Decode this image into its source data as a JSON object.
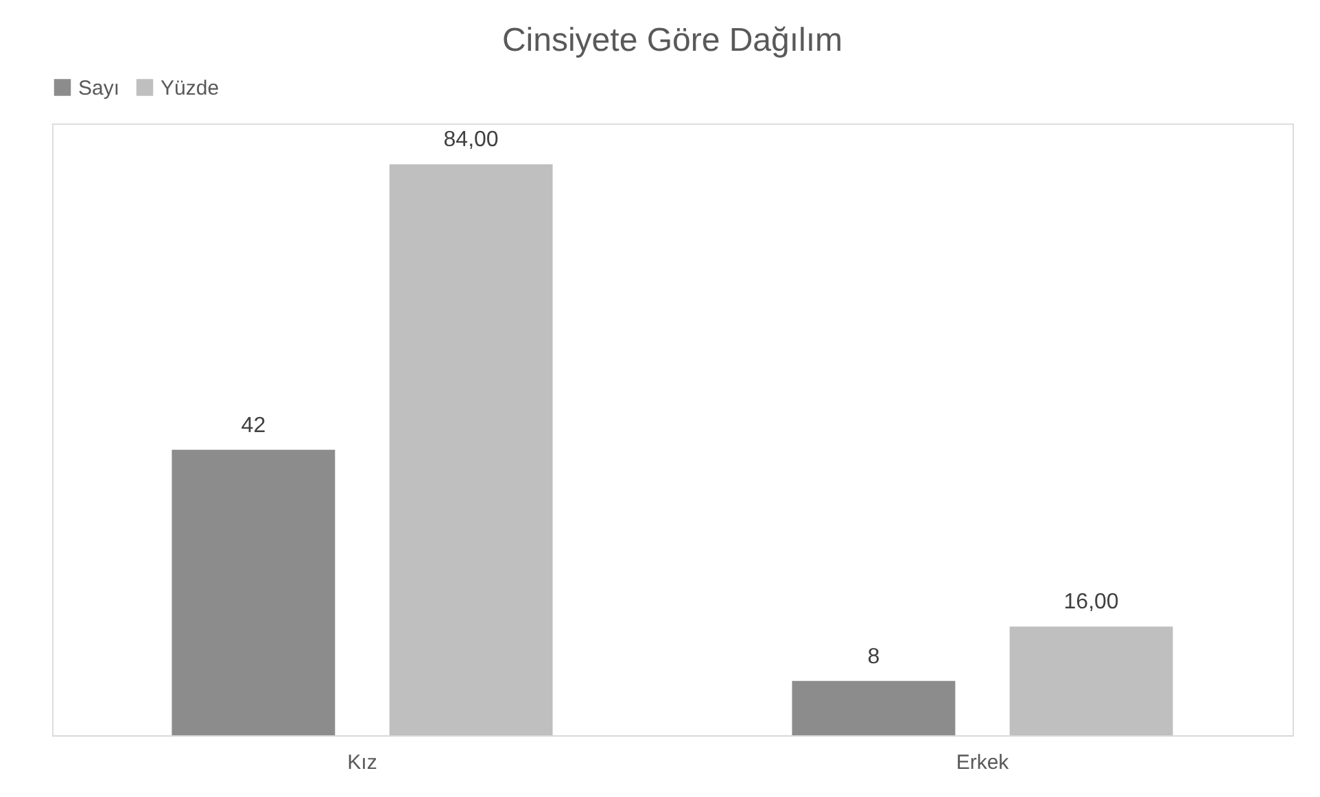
{
  "chart_data": {
    "type": "bar",
    "title": "Cinsiyete Göre Dağılım",
    "categories": [
      "Kız",
      "Erkek"
    ],
    "series": [
      {
        "name": "Sayı",
        "color": "#8c8c8c",
        "values": [
          42,
          8
        ],
        "value_labels": [
          "42",
          "8"
        ]
      },
      {
        "name": "Yüzde",
        "color": "#bfbfbf",
        "values": [
          84,
          16
        ],
        "value_labels": [
          "84,00",
          "16,00"
        ]
      }
    ],
    "legend": "top",
    "grid": false
  }
}
